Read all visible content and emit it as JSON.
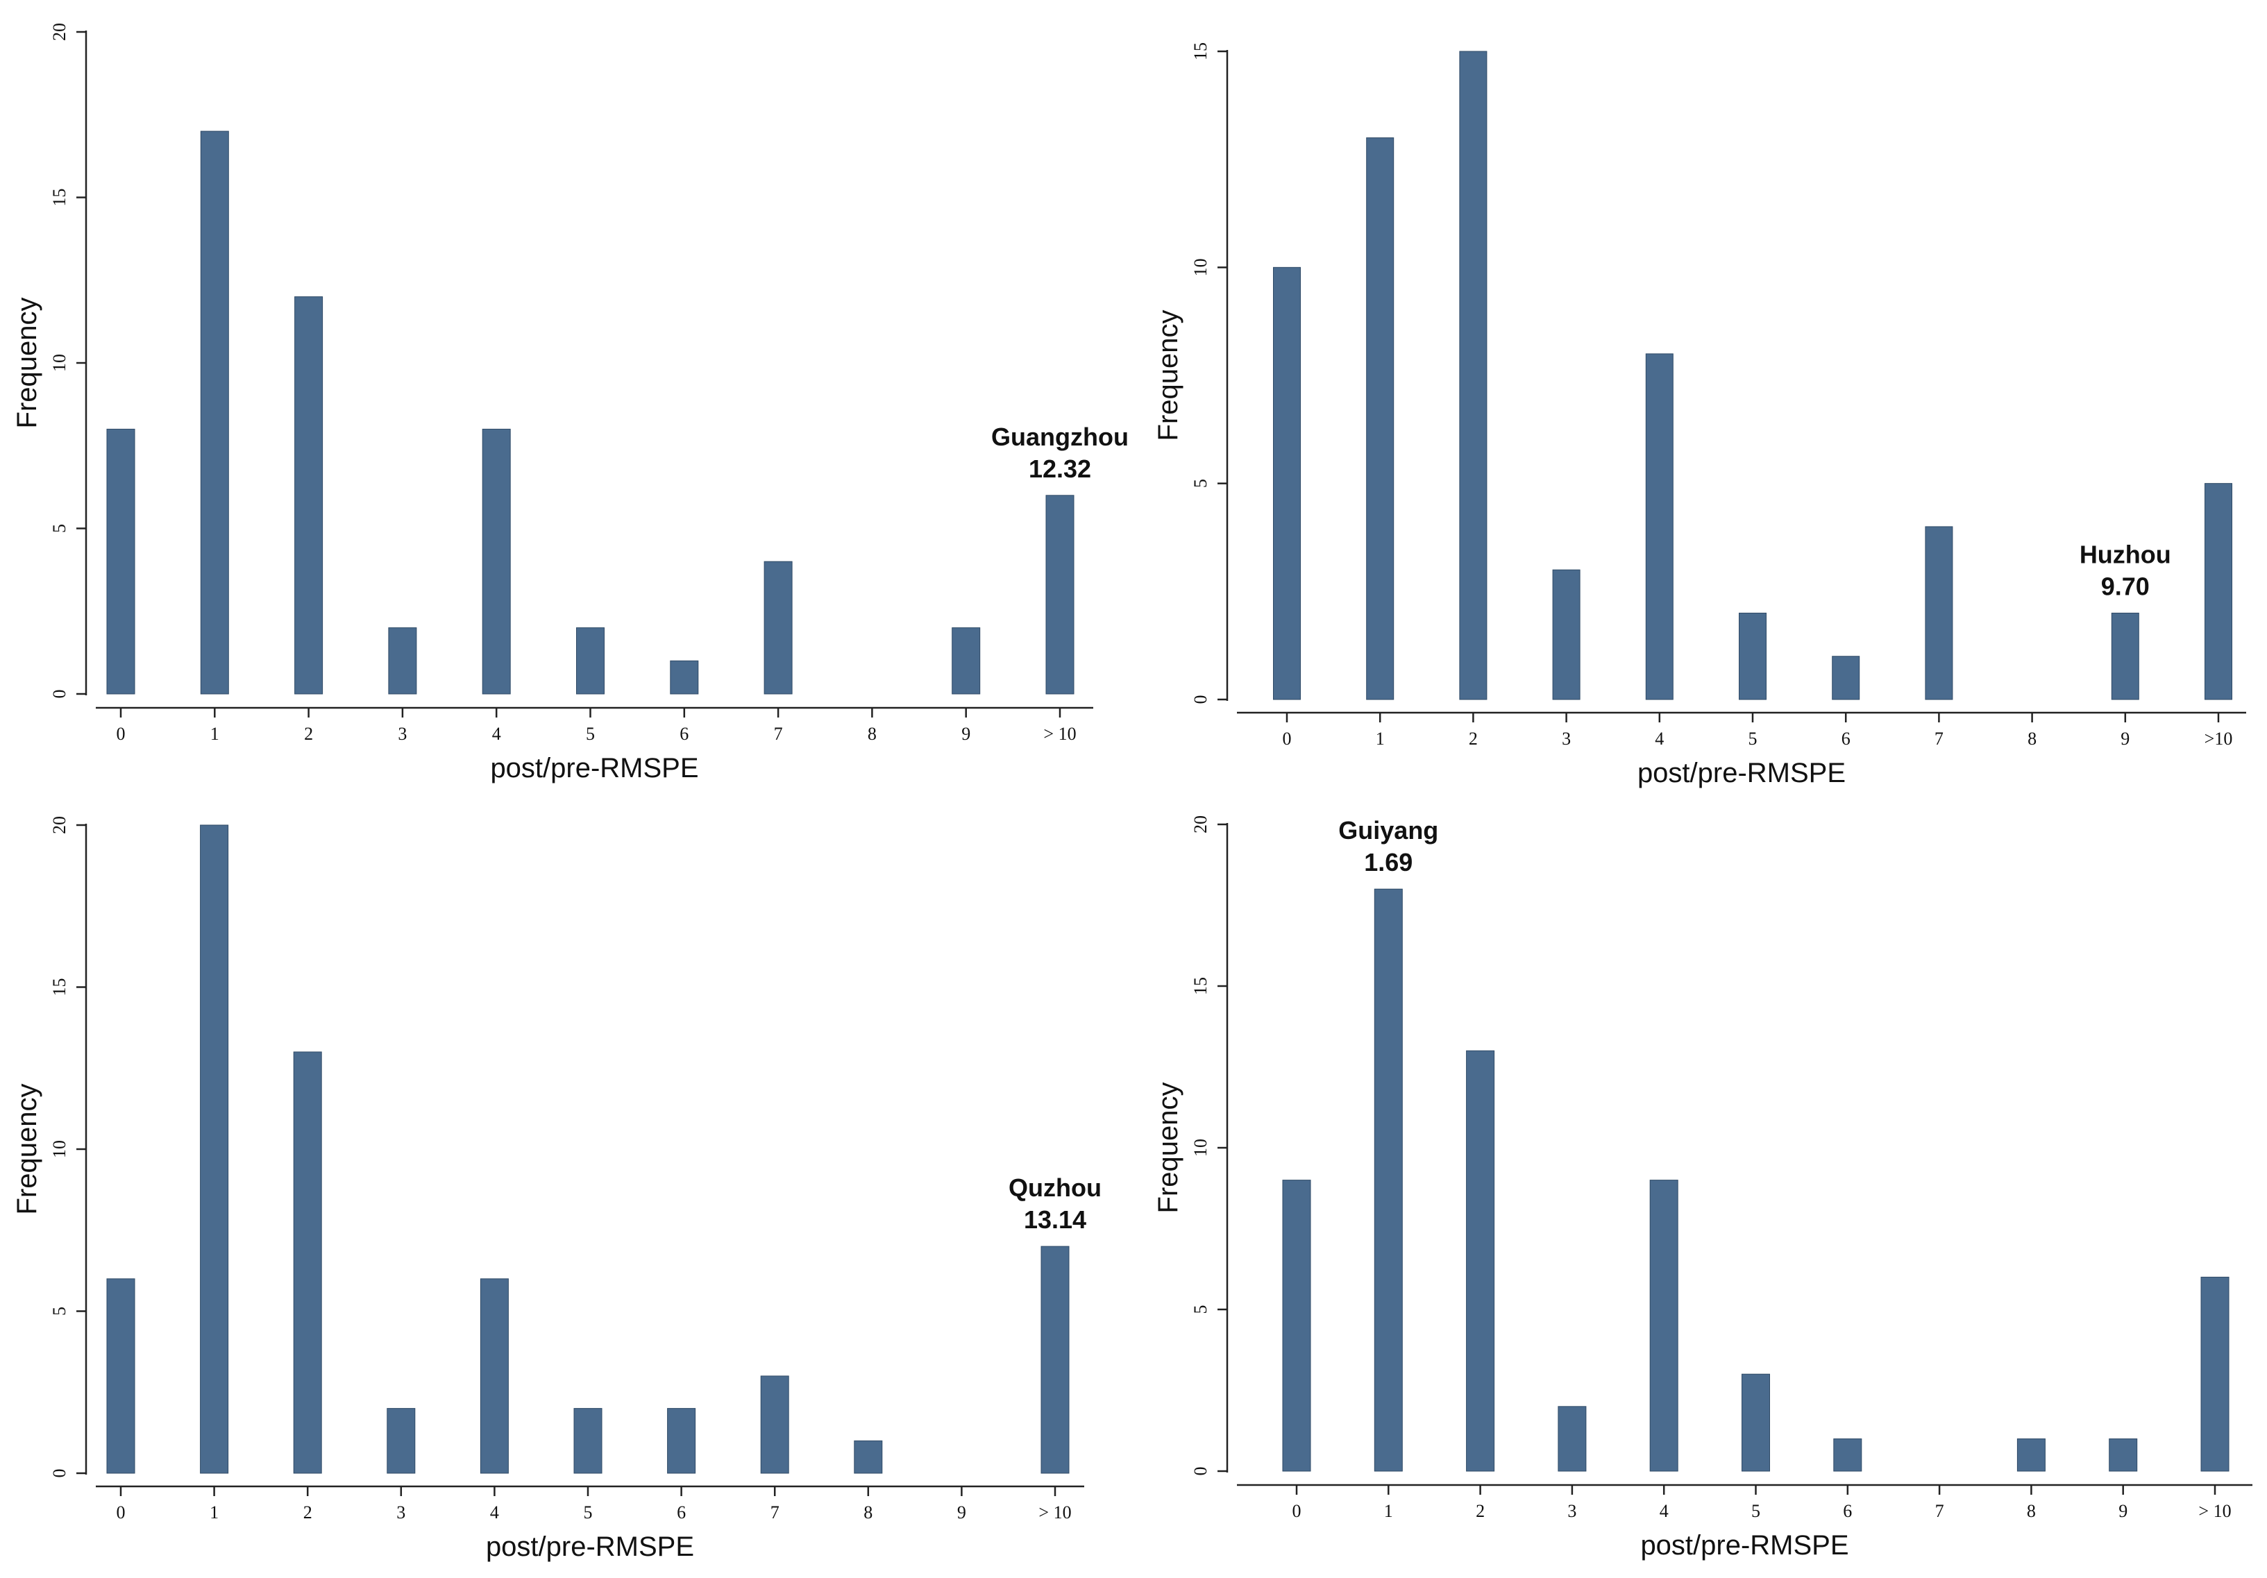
{
  "chart_data": [
    {
      "type": "bar",
      "title": "",
      "xlabel": "post/pre-RMSPE",
      "ylabel": "Frequency",
      "categories": [
        "0",
        "1",
        "2",
        "3",
        "4",
        "5",
        "6",
        "7",
        "8",
        "9",
        "> 10"
      ],
      "values": [
        8,
        17,
        12,
        2,
        8,
        2,
        1,
        4,
        0,
        2,
        6
      ],
      "ylim": [
        0,
        20
      ],
      "yticks": [
        0,
        5,
        10,
        15,
        20
      ],
      "grid": false,
      "bar_color": "#4a6b8e",
      "annotation": {
        "name": "Guangzhou",
        "value": "12.32",
        "category": "> 10"
      }
    },
    {
      "type": "bar",
      "title": "",
      "xlabel": "post/pre-RMSPE",
      "ylabel": "Frequency",
      "categories": [
        "0",
        "1",
        "2",
        "3",
        "4",
        "5",
        "6",
        "7",
        "8",
        "9",
        ">10"
      ],
      "values": [
        10,
        13,
        15,
        3,
        8,
        2,
        1,
        4,
        0,
        2,
        5
      ],
      "ylim": [
        0,
        15
      ],
      "yticks": [
        0,
        5,
        10,
        15
      ],
      "grid": false,
      "bar_color": "#4a6b8e",
      "annotation": {
        "name": "Huzhou",
        "value": "9.70",
        "category": "9"
      }
    },
    {
      "type": "bar",
      "title": "",
      "xlabel": "post/pre-RMSPE",
      "ylabel": "Frequency",
      "categories": [
        "0",
        "1",
        "2",
        "3",
        "4",
        "5",
        "6",
        "7",
        "8",
        "9",
        "> 10"
      ],
      "values": [
        6,
        20,
        13,
        2,
        6,
        2,
        2,
        3,
        1,
        0,
        7
      ],
      "ylim": [
        0,
        20
      ],
      "yticks": [
        0,
        5,
        10,
        15,
        20
      ],
      "grid": false,
      "bar_color": "#4a6b8e",
      "annotation": {
        "name": "Quzhou",
        "value": "13.14",
        "category": "> 10"
      }
    },
    {
      "type": "bar",
      "title": "",
      "xlabel": "post/pre-RMSPE",
      "ylabel": "Frequency",
      "categories": [
        "0",
        "1",
        "2",
        "3",
        "4",
        "5",
        "6",
        "7",
        "8",
        "9",
        "> 10"
      ],
      "values": [
        9,
        18,
        13,
        2,
        9,
        3,
        1,
        0,
        1,
        1,
        6
      ],
      "ylim": [
        0,
        20
      ],
      "yticks": [
        0,
        5,
        10,
        15,
        20
      ],
      "grid": false,
      "bar_color": "#4a6b8e",
      "annotation": {
        "name": "Guiyang",
        "value": "1.69",
        "category": "1"
      }
    }
  ]
}
